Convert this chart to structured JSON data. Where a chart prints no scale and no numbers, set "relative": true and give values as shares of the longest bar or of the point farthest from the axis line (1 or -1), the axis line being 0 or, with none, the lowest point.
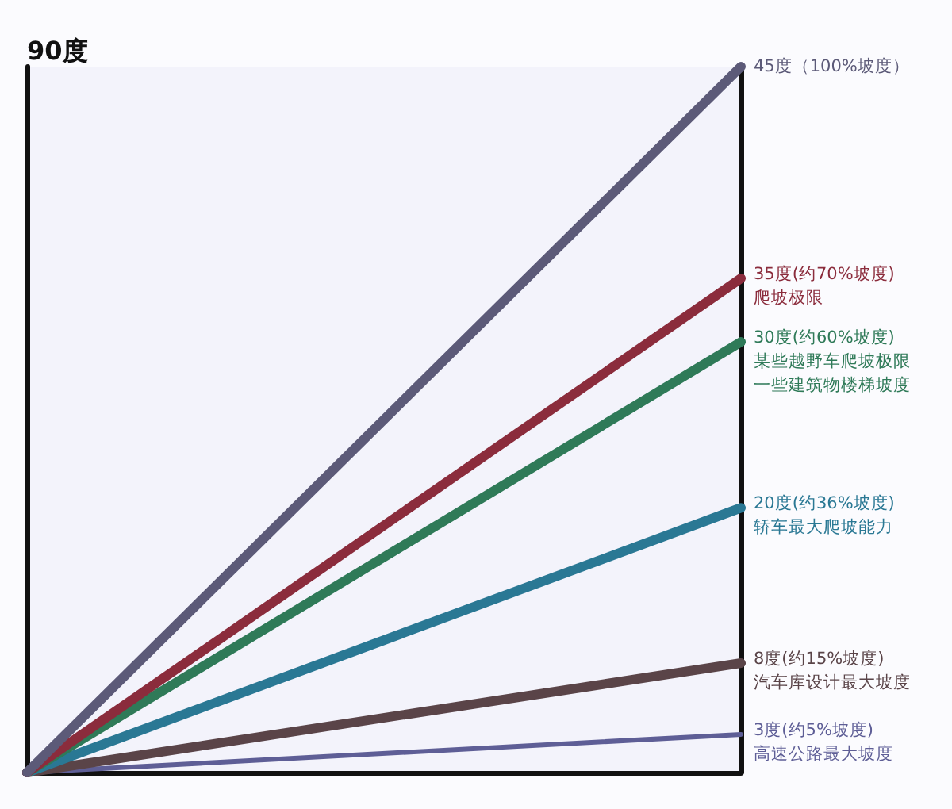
{
  "chart_data": {
    "type": "line",
    "relative": true,
    "ylabel": "90度",
    "categories": [
      null,
      null
    ],
    "marker": "none",
    "line_style": "solid",
    "grid": false,
    "legend": false,
    "series": [
      {
        "name": "45度（100%坡度）",
        "color": "#5c5a78",
        "values": [
          0,
          1
        ]
      },
      {
        "name": "35度(约70%坡度)\n爬坡极限",
        "color": "#8b2c3c",
        "values": [
          0,
          0.7
        ]
      },
      {
        "name": "30度(约60%坡度)\n某些越野车爬坡极限一些建筑物楼梯坡度",
        "color": "#2f7a58",
        "values": [
          0,
          0.61
        ]
      },
      {
        "name": "20度(约36%坡度)\n轿车最大爬坡能力",
        "color": "#2a7894",
        "values": [
          0,
          0.375
        ]
      },
      {
        "name": "8度(约15%坡度)\n汽车库设计最大坡度",
        "color": "#5a4448",
        "values": [
          0,
          0.155
        ]
      },
      {
        "name": "3度(约5%坡度)\n高速公路最大坡度",
        "color": "#5e5e96",
        "values": [
          0,
          0.054
        ]
      }
    ]
  }
}
